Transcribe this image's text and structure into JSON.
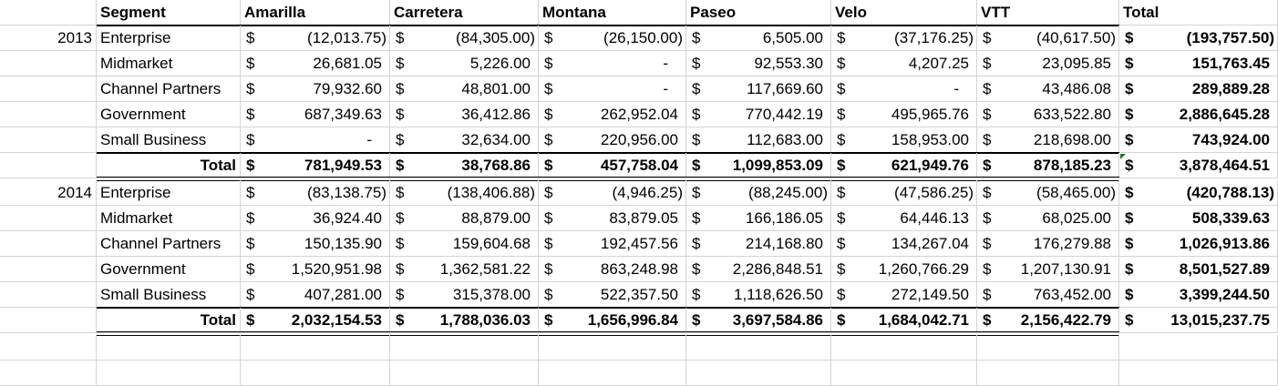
{
  "header": {
    "segment": "Segment",
    "columns": [
      "Amarilla",
      "Carretera",
      "Montana",
      "Paseo",
      "Velo",
      "VTT",
      "Total"
    ]
  },
  "currency_symbol": "$",
  "groups": [
    {
      "year": "2013",
      "rows": [
        {
          "label": "Enterprise",
          "values": [
            "(12,013.75)",
            "(84,305.00)",
            "(26,150.00)",
            "6,505.00",
            "(37,176.25)",
            "(40,617.50)",
            "(193,757.50)"
          ]
        },
        {
          "label": "Midmarket",
          "values": [
            "26,681.05",
            "5,226.00",
            "-",
            "92,553.30",
            "4,207.25",
            "23,095.85",
            "151,763.45"
          ]
        },
        {
          "label": "Channel Partners",
          "values": [
            "79,932.60",
            "48,801.00",
            "-",
            "117,669.60",
            "-",
            "43,486.08",
            "289,889.28"
          ]
        },
        {
          "label": "Government",
          "values": [
            "687,349.63",
            "36,412.86",
            "262,952.04",
            "770,442.19",
            "495,965.76",
            "633,522.80",
            "2,886,645.28"
          ]
        },
        {
          "label": "Small Business",
          "values": [
            "-",
            "32,634.00",
            "220,956.00",
            "112,683.00",
            "158,953.00",
            "218,698.00",
            "743,924.00"
          ]
        }
      ],
      "total": {
        "label": "Total",
        "values": [
          "781,949.53",
          "38,768.86",
          "457,758.04",
          "1,099,853.09",
          "621,949.76",
          "878,185.23",
          "3,878,464.51"
        ]
      }
    },
    {
      "year": "2014",
      "rows": [
        {
          "label": "Enterprise",
          "values": [
            "(83,138.75)",
            "(138,406.88)",
            "(4,946.25)",
            "(88,245.00)",
            "(47,586.25)",
            "(58,465.00)",
            "(420,788.13)"
          ]
        },
        {
          "label": "Midmarket",
          "values": [
            "36,924.40",
            "88,879.00",
            "83,879.05",
            "166,186.05",
            "64,446.13",
            "68,025.00",
            "508,339.63"
          ]
        },
        {
          "label": "Channel Partners",
          "values": [
            "150,135.90",
            "159,604.68",
            "192,457.56",
            "214,168.80",
            "134,267.04",
            "176,279.88",
            "1,026,913.86"
          ]
        },
        {
          "label": "Government",
          "values": [
            "1,520,951.98",
            "1,362,581.22",
            "863,248.98",
            "2,286,848.51",
            "1,260,766.29",
            "1,207,130.91",
            "8,501,527.89"
          ]
        },
        {
          "label": "Small Business",
          "values": [
            "407,281.00",
            "315,378.00",
            "522,357.50",
            "1,118,626.50",
            "272,149.50",
            "763,452.00",
            "3,399,244.50"
          ]
        }
      ],
      "total": {
        "label": "Total",
        "values": [
          "2,032,154.53",
          "1,788,036.03",
          "1,656,996.84",
          "3,697,584.86",
          "1,684,042.71",
          "2,156,422.79",
          "13,015,237.75"
        ]
      }
    }
  ],
  "colors": {
    "grid": "#d4d4d4",
    "rule": "#000000",
    "comment_flag": "#1e7a1e"
  }
}
